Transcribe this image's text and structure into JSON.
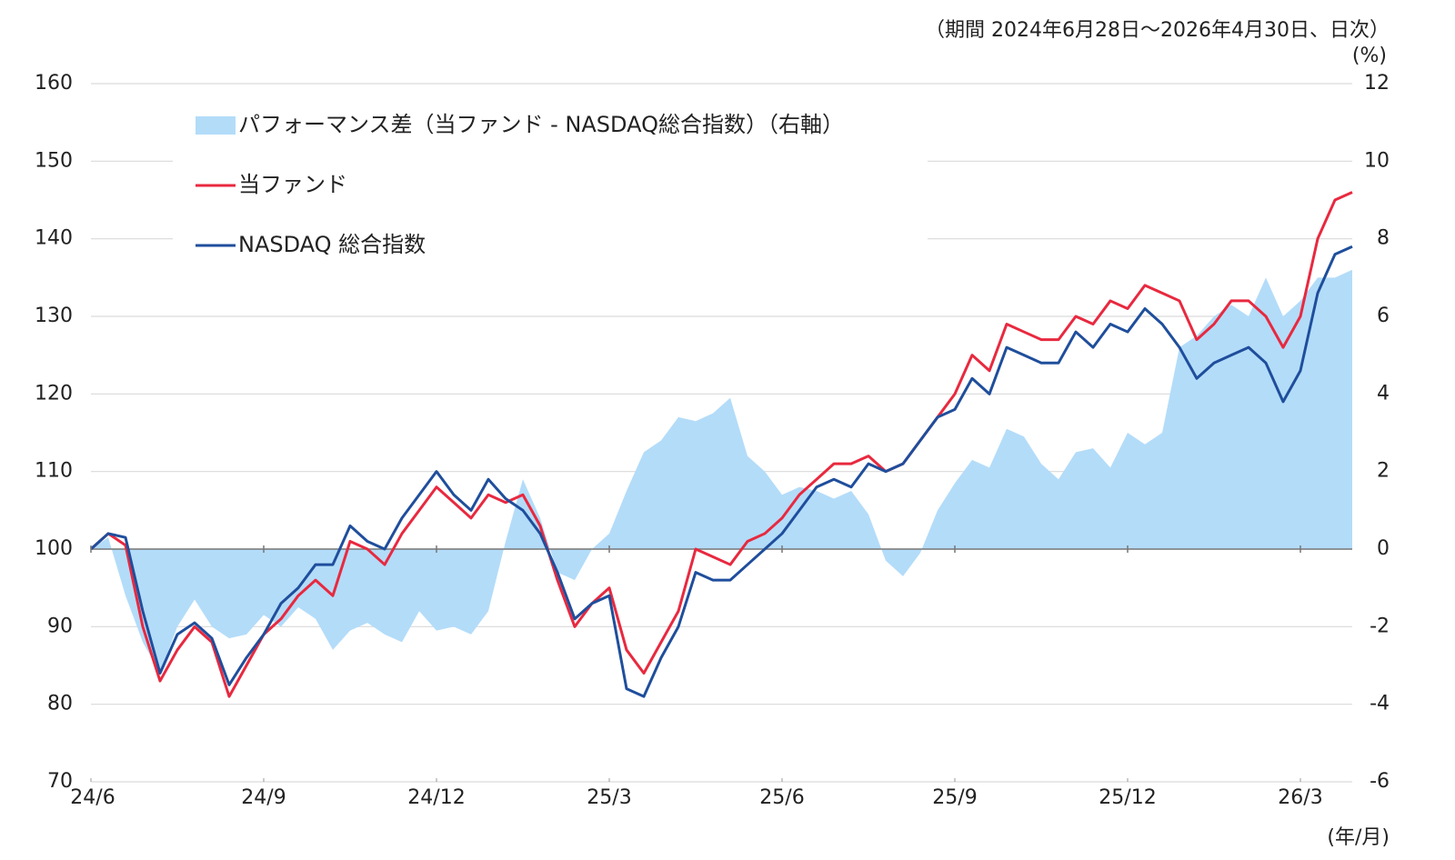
{
  "chart_data": {
    "type": "line",
    "period_note": "（期間  2024年6月28日～2026年4月30日、日次）",
    "y2_unit": "(%)",
    "x_unit": "(年/月)",
    "categories": [
      "24/6",
      null,
      null,
      null,
      null,
      null,
      null,
      null,
      null,
      null,
      "24/9",
      null,
      null,
      null,
      null,
      null,
      null,
      null,
      null,
      null,
      "24/12",
      null,
      null,
      null,
      null,
      null,
      null,
      null,
      null,
      null,
      "25/3",
      null,
      null,
      null,
      null,
      null,
      null,
      null,
      null,
      null,
      "25/6",
      null,
      null,
      null,
      null,
      null,
      null,
      null,
      null,
      null,
      "25/9",
      null,
      null,
      null,
      null,
      null,
      null,
      null,
      null,
      null,
      "25/12",
      null,
      null,
      null,
      null,
      null,
      null,
      null,
      null,
      null,
      "26/3",
      null,
      null,
      null
    ],
    "ylim": [
      70,
      160
    ],
    "yticks": [
      70,
      80,
      90,
      100,
      110,
      120,
      130,
      140,
      150,
      160
    ],
    "y2lim": [
      -6,
      12
    ],
    "y2ticks": [
      -6,
      -4,
      -2,
      0,
      2,
      4,
      6,
      8,
      10,
      12
    ],
    "grid": true,
    "series": [
      {
        "name": "パフォーマンス差（当ファンド - NASDAQ総合指数）（右軸）",
        "type": "area",
        "axis": "y2",
        "color": "#b3dcf9",
        "values": [
          0,
          0.3,
          -1.2,
          -2.4,
          -3.2,
          -2.0,
          -1.3,
          -2.0,
          -2.3,
          -2.2,
          -1.7,
          -2.0,
          -1.5,
          -1.8,
          -2.6,
          -2.1,
          -1.9,
          -2.2,
          -2.4,
          -1.6,
          -2.1,
          -2.0,
          -2.2,
          -1.6,
          0.2,
          1.8,
          0.8,
          -0.6,
          -0.8,
          0.0,
          0.4,
          1.5,
          2.5,
          2.8,
          3.4,
          3.3,
          3.5,
          3.9,
          2.4,
          2.0,
          1.4,
          1.6,
          1.5,
          1.3,
          1.5,
          0.9,
          -0.3,
          -0.7,
          -0.1,
          1.0,
          1.7,
          2.3,
          2.1,
          3.1,
          2.9,
          2.2,
          1.8,
          2.5,
          2.6,
          2.1,
          3.0,
          2.7,
          3.0,
          5.2,
          5.5,
          6.0,
          6.3,
          6.0,
          7.0,
          6.0,
          6.4,
          7.0,
          7.0,
          7.2
        ]
      },
      {
        "name": "当ファンド",
        "type": "line",
        "color": "#e8293f",
        "values": [
          100,
          102,
          100.5,
          90,
          83,
          87,
          90,
          88,
          81,
          85,
          89,
          91,
          94,
          96,
          94,
          101,
          100,
          98,
          102,
          105,
          108,
          106,
          104,
          107,
          106,
          107,
          103,
          96,
          90,
          93,
          95,
          87,
          84,
          88,
          92,
          100,
          99,
          98,
          101,
          102,
          104,
          107,
          109,
          111,
          111,
          112,
          110,
          111,
          114,
          117,
          120,
          125,
          123,
          129,
          128,
          127,
          127,
          130,
          129,
          132,
          131,
          134,
          133,
          132,
          127,
          129,
          132,
          132,
          130,
          126,
          130,
          140,
          145,
          146
        ]
      },
      {
        "name": "NASDAQ 総合指数",
        "type": "line",
        "color": "#1f4e9c",
        "values": [
          100,
          102,
          101.5,
          92,
          84,
          89,
          90.5,
          88.5,
          82.5,
          86,
          89,
          93,
          95,
          98,
          98,
          103,
          101,
          100,
          104,
          107,
          110,
          107,
          105,
          109,
          106.5,
          105,
          102,
          97,
          91,
          93,
          94,
          82,
          81,
          86,
          90,
          97,
          96,
          96,
          98,
          100,
          102,
          105,
          108,
          109,
          108,
          111,
          110,
          111,
          114,
          117,
          118,
          122,
          120,
          126,
          125,
          124,
          124,
          128,
          126,
          129,
          128,
          131,
          129,
          126,
          122,
          124,
          125,
          126,
          124,
          119,
          123,
          133,
          138,
          139
        ]
      }
    ]
  }
}
